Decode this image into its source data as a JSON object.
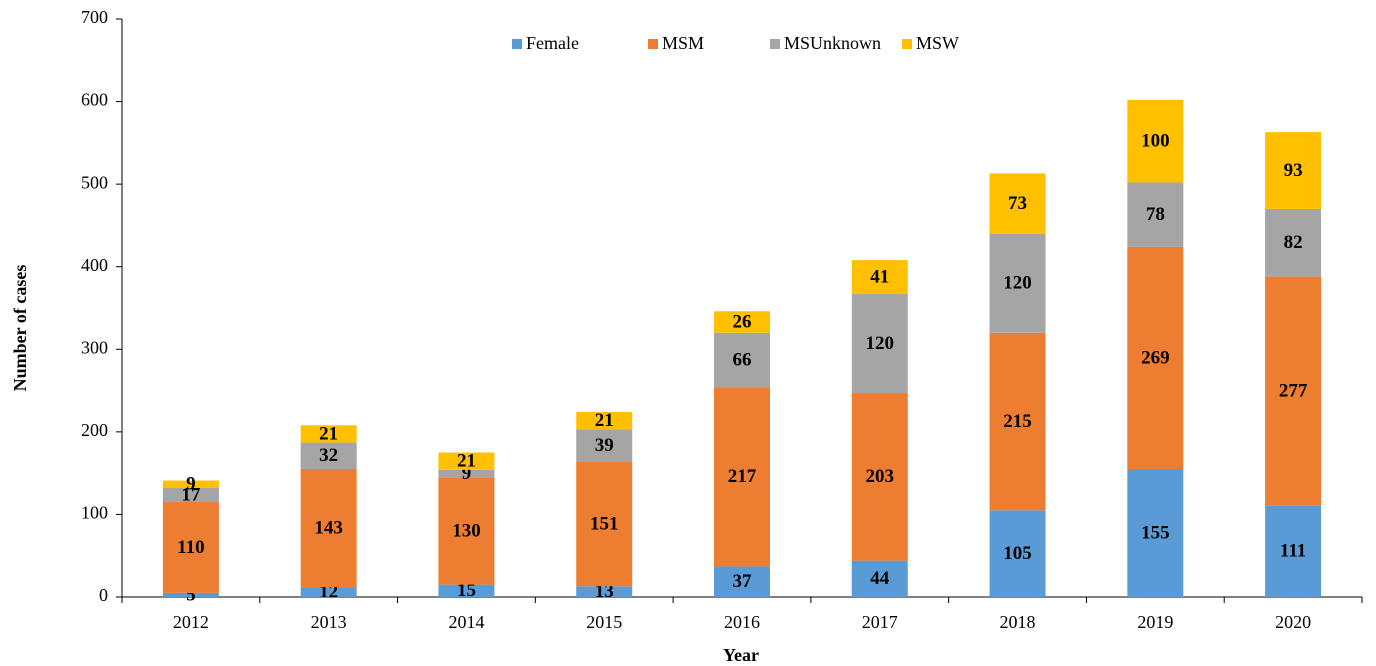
{
  "chart_data": {
    "type": "stacked_bar",
    "x_label": "Year",
    "y_label": "Number of cases",
    "categories": [
      "2012",
      "2013",
      "2014",
      "2015",
      "2016",
      "2017",
      "2018",
      "2019",
      "2020"
    ],
    "series": [
      {
        "name": "Female",
        "color": "#5b9bd5",
        "values": [
          5,
          12,
          15,
          13,
          37,
          44,
          105,
          155,
          111
        ]
      },
      {
        "name": "MSM",
        "color": "#ed7d31",
        "values": [
          110,
          143,
          130,
          151,
          217,
          203,
          215,
          269,
          277
        ]
      },
      {
        "name": "MSUnknown",
        "color": "#a5a5a5",
        "values": [
          17,
          32,
          9,
          39,
          66,
          120,
          120,
          78,
          82
        ]
      },
      {
        "name": "MSW",
        "color": "#ffc000",
        "values": [
          9,
          21,
          21,
          21,
          26,
          41,
          73,
          100,
          93
        ]
      }
    ],
    "ylim": [
      0,
      700
    ],
    "yticks": [
      0,
      100,
      200,
      300,
      400,
      500,
      600,
      700
    ],
    "legend": "top"
  }
}
